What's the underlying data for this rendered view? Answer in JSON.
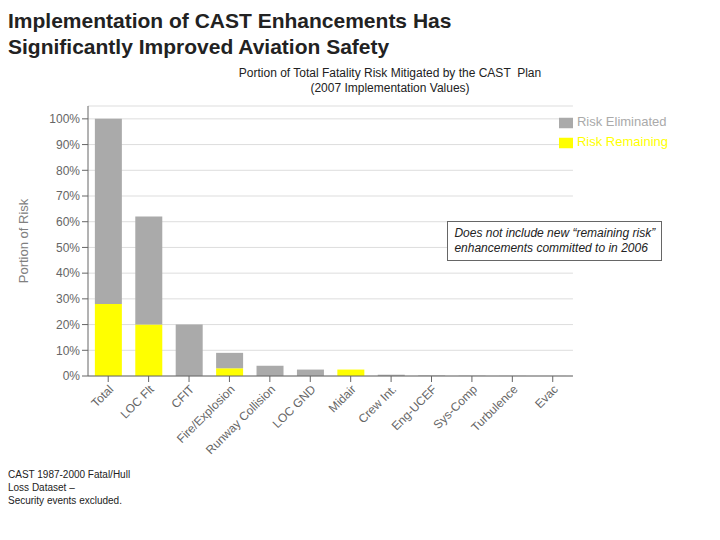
{
  "chart_data": {
    "type": "bar",
    "title": "Implementation of CAST Enhancements Has\nSignificantly Improved Aviation Safety",
    "subtitle": "Portion of Total Fatality Risk Mitigated by the CAST  Plan\n(2007 Implementation Values)",
    "ylabel": "Portion of Risk",
    "categories": [
      "Total",
      "LOC Flt",
      "CFIT",
      "Fire/Explosion",
      "Runway Collision",
      "LOC GND",
      "Midair",
      "Crew Int.",
      "Eng-UCEF",
      "Sys-Comp",
      "Turbulence",
      "Evac"
    ],
    "series": [
      {
        "name": "Risk Remaining",
        "color": "#ffff00",
        "values": [
          0.28,
          0.2,
          0.0,
          0.03,
          0.0,
          0.0,
          0.025,
          0.0,
          0.0,
          0.0,
          0.0,
          0.0
        ]
      },
      {
        "name": "Risk Eliminated",
        "color": "#aaaaaa",
        "values": [
          0.72,
          0.42,
          0.2,
          0.06,
          0.04,
          0.025,
          0.0,
          0.005,
          0.002,
          0.001,
          0.0005,
          0.0002
        ]
      }
    ],
    "stacked": true,
    "ylim": [
      0,
      1.05
    ],
    "yticks": [
      {
        "value": 0.0,
        "label": "0%"
      },
      {
        "value": 0.1,
        "label": "10%"
      },
      {
        "value": 0.2,
        "label": "20%"
      },
      {
        "value": 0.3,
        "label": "30%"
      },
      {
        "value": 0.4,
        "label": "40%"
      },
      {
        "value": 0.5,
        "label": "50%"
      },
      {
        "value": 0.6,
        "label": "60%"
      },
      {
        "value": 0.7,
        "label": "70%"
      },
      {
        "value": 0.8,
        "label": "80%"
      },
      {
        "value": 0.9,
        "label": "90%"
      },
      {
        "value": 1.0,
        "label": "100%"
      }
    ],
    "grid": true,
    "legend": "upper right",
    "annotations": [
      "Does not include new “remaining risk”\nenhancements committed to in 2006",
      "CAST 1987-2000 Fatal/Hull\nLoss Dataset –\nSecurity events excluded."
    ]
  }
}
